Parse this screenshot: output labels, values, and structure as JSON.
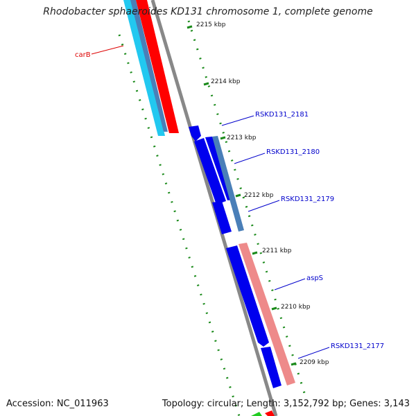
{
  "title": "Rhodobacter sphaeroides KD131 chromosome 1, complete genome",
  "footer": {
    "accession": "Accession: NC_011963",
    "topology": "Topology: circular; Length: 3,152,792 bp; Genes: 3,143"
  },
  "ruler": {
    "labels": [
      "2215 kbp",
      "2214 kbp",
      "2213 kbp",
      "2212 kbp",
      "2211 kbp",
      "2210 kbp",
      "2209 kbp"
    ]
  },
  "genes": [
    {
      "name": "carB",
      "color": "#dd0000"
    },
    {
      "name": "RSKD131_2181",
      "color": "#0000cc"
    },
    {
      "name": "RSKD131_2180",
      "color": "#0000cc"
    },
    {
      "name": "RSKD131_2179",
      "color": "#0000cc"
    },
    {
      "name": "aspS",
      "color": "#0000cc"
    },
    {
      "name": "RSKD131_2177",
      "color": "#0000cc"
    }
  ],
  "colors": {
    "backbone": "#888888",
    "ruler": "#1a8a1a",
    "gene_blue": "#0000ee",
    "gene_red": "#ff0000",
    "gene_cyan": "#22c8f0",
    "gene_steel": "#4a7fb8",
    "gene_pink": "#ee8a8a",
    "gene_green": "#22cc22"
  }
}
